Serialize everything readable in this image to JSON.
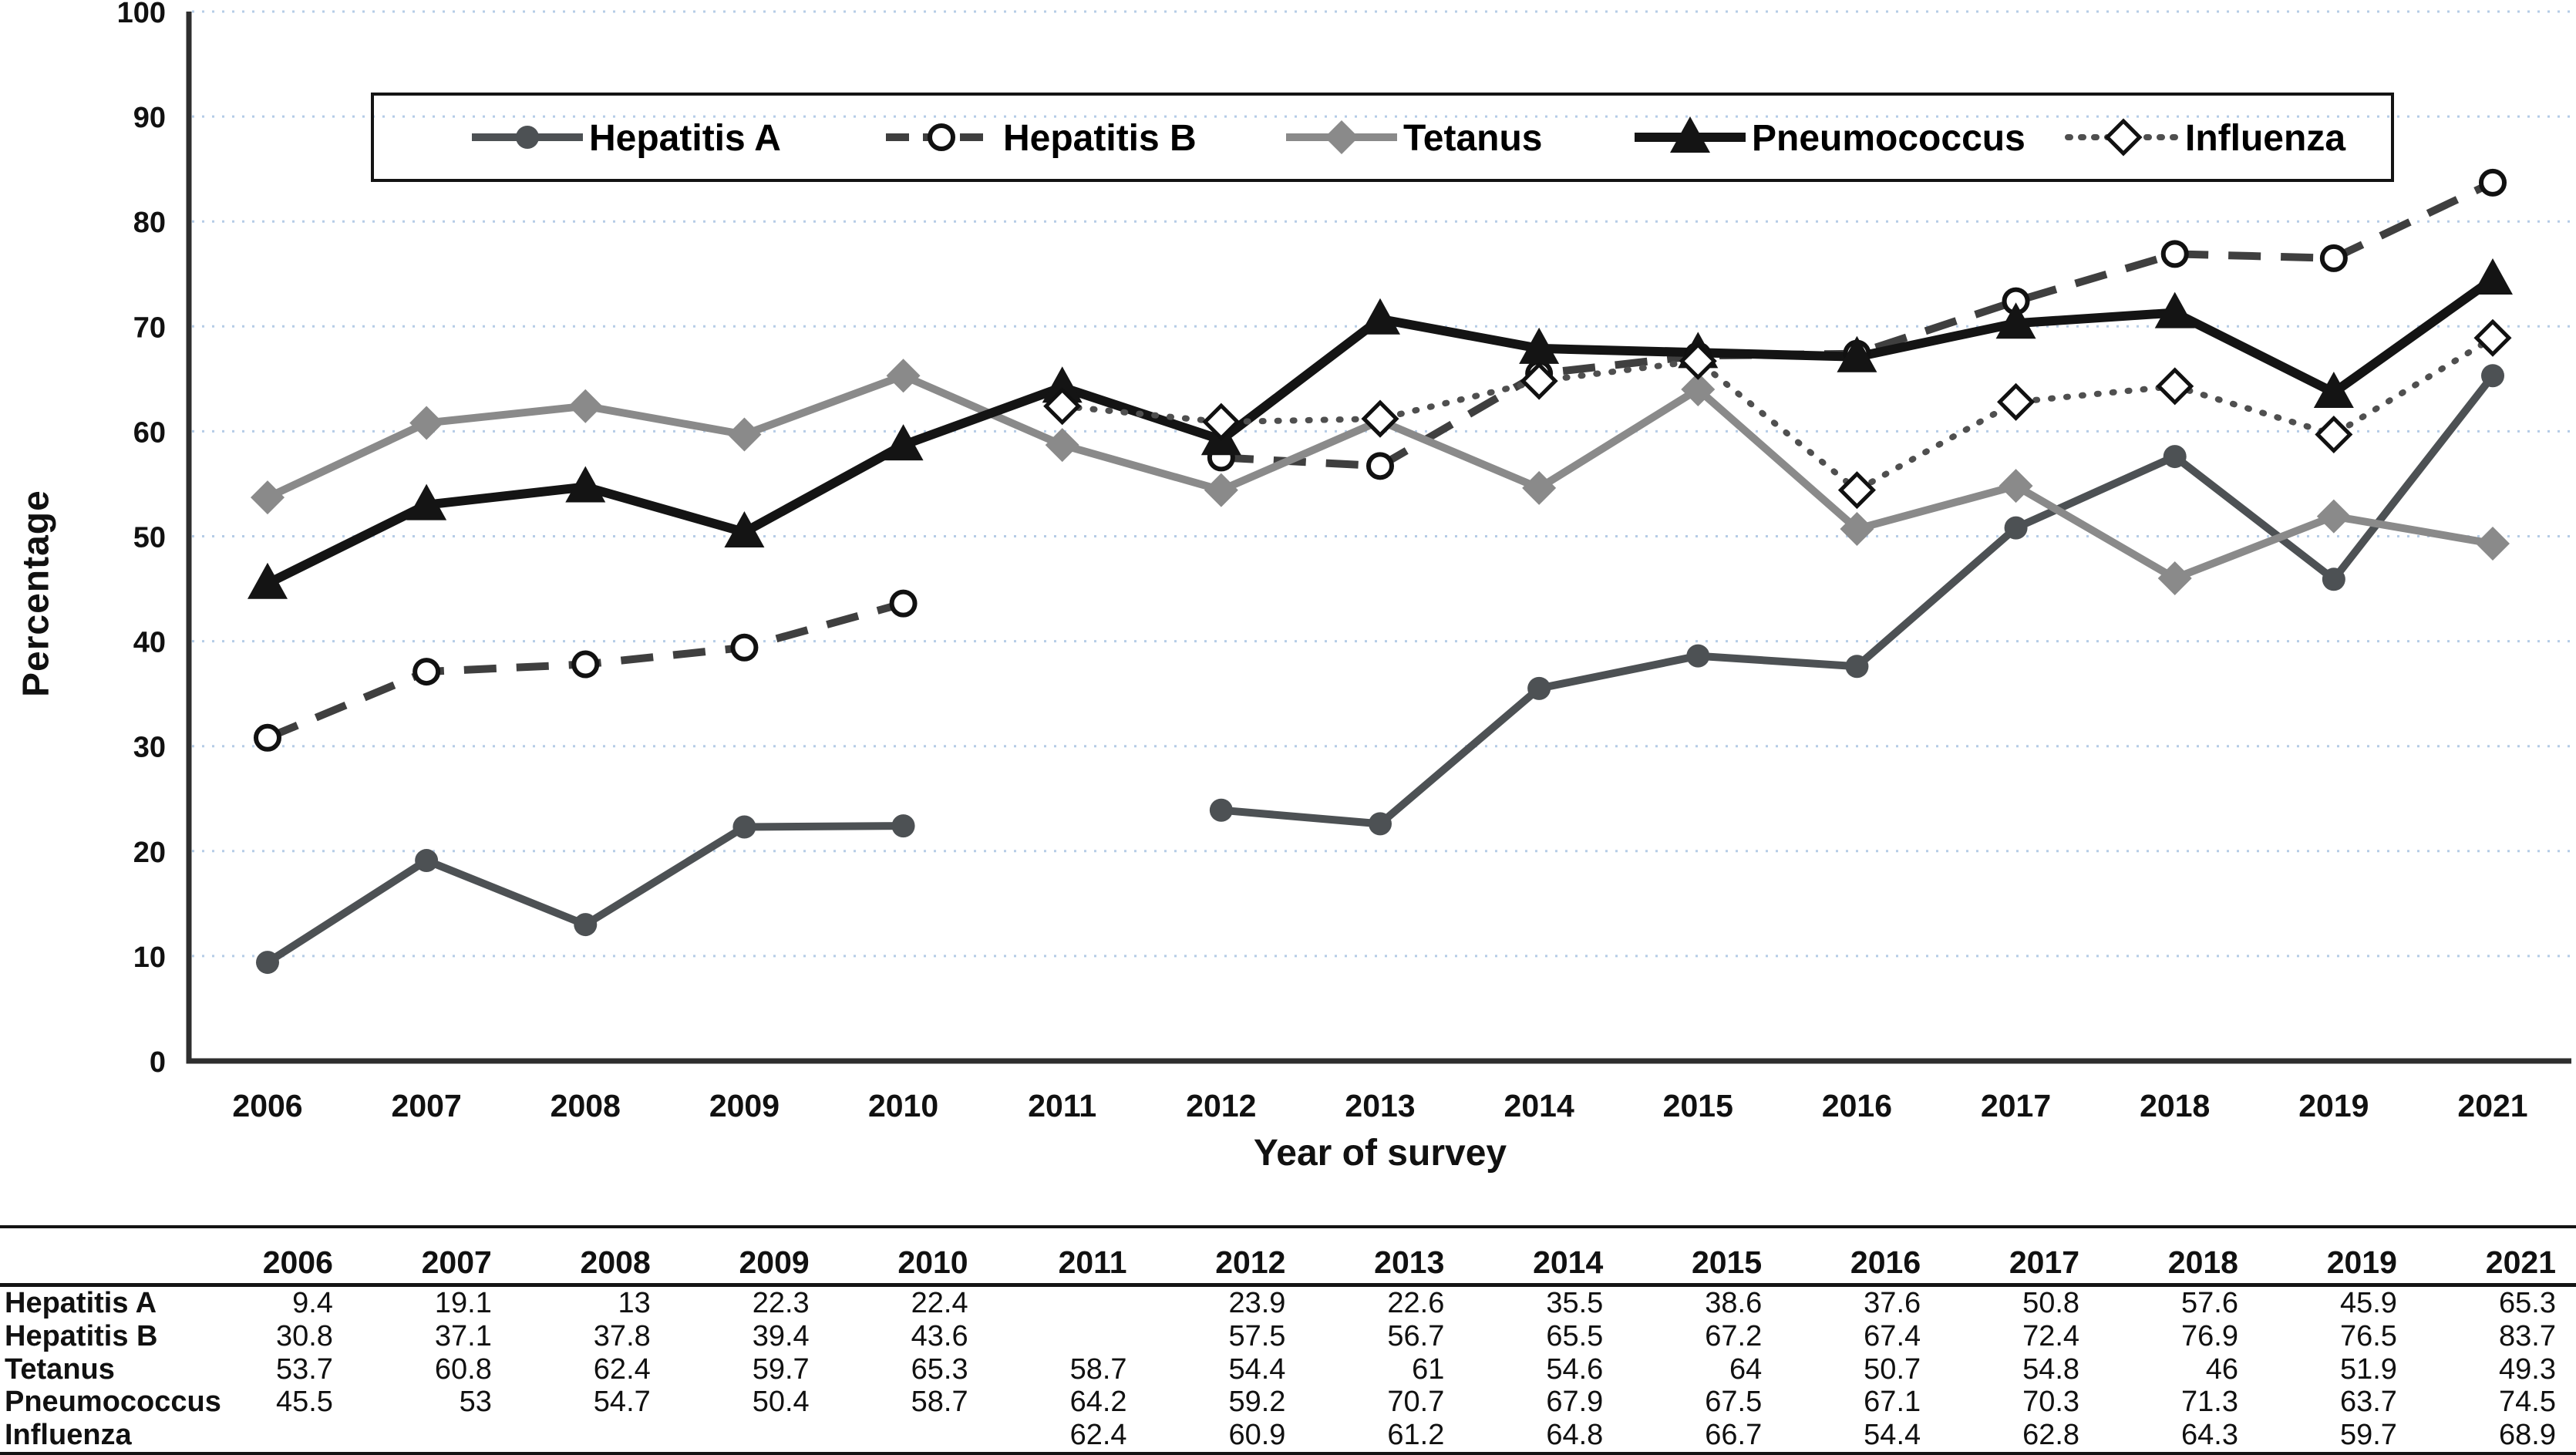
{
  "chart_data": {
    "type": "line",
    "title": "",
    "xlabel": "Year of survey",
    "ylabel": "Percentage",
    "ylim": [
      0,
      100
    ],
    "ytick_step": 10,
    "grid": {
      "show": true,
      "color": "#b5cce6",
      "style": "dotted"
    },
    "axis_color": "#2e2e2e",
    "legend_position": "top-center-inside-box",
    "categories": [
      "2006",
      "2007",
      "2008",
      "2009",
      "2010",
      "2011",
      "2012",
      "2013",
      "2014",
      "2015",
      "2016",
      "2017",
      "2018",
      "2019",
      "2021"
    ],
    "series": [
      {
        "name": "Hepatitis A",
        "color": "#4d5154",
        "line": "solid",
        "marker": "filled-circle",
        "values": [
          9.4,
          19.1,
          13,
          22.3,
          22.4,
          null,
          23.9,
          22.6,
          35.5,
          38.6,
          37.6,
          50.8,
          57.6,
          45.9,
          65.3
        ]
      },
      {
        "name": "Hepatitis B",
        "color": "#3f3f3f",
        "line": "dashed",
        "marker": "open-circle",
        "values": [
          30.8,
          37.1,
          37.8,
          39.4,
          43.6,
          null,
          57.5,
          56.7,
          65.5,
          67.2,
          67.4,
          72.4,
          76.9,
          76.5,
          83.7
        ]
      },
      {
        "name": "Tetanus",
        "color": "#8a8a8a",
        "line": "solid",
        "marker": "filled-diamond",
        "values": [
          53.7,
          60.8,
          62.4,
          59.7,
          65.3,
          58.7,
          54.4,
          61,
          54.6,
          64,
          50.7,
          54.8,
          46,
          51.9,
          49.3
        ]
      },
      {
        "name": "Pneumococcus",
        "color": "#141414",
        "line": "solid",
        "marker": "filled-triangle",
        "thickness": "thick",
        "values": [
          45.5,
          53,
          54.7,
          50.4,
          58.7,
          64.2,
          59.2,
          70.7,
          67.9,
          67.5,
          67.1,
          70.3,
          71.3,
          63.7,
          74.5
        ]
      },
      {
        "name": "Influenza",
        "color": "#4f4f4f",
        "line": "dotted",
        "marker": "open-diamond",
        "values": [
          null,
          null,
          null,
          null,
          null,
          62.4,
          60.9,
          61.2,
          64.8,
          66.7,
          54.4,
          62.8,
          64.3,
          59.7,
          68.9
        ]
      }
    ]
  },
  "table": {
    "corner_label": "",
    "rows": [
      {
        "label": "Hepatitis A",
        "values": [
          "9.4",
          "19.1",
          "13",
          "22.3",
          "22.4",
          "",
          "23.9",
          "22.6",
          "35.5",
          "38.6",
          "37.6",
          "50.8",
          "57.6",
          "45.9",
          "65.3"
        ]
      },
      {
        "label": "Hepatitis B",
        "values": [
          "30.8",
          "37.1",
          "37.8",
          "39.4",
          "43.6",
          "",
          "57.5",
          "56.7",
          "65.5",
          "67.2",
          "67.4",
          "72.4",
          "76.9",
          "76.5",
          "83.7"
        ]
      },
      {
        "label": "Tetanus",
        "values": [
          "53.7",
          "60.8",
          "62.4",
          "59.7",
          "65.3",
          "58.7",
          "54.4",
          "61",
          "54.6",
          "64",
          "50.7",
          "54.8",
          "46",
          "51.9",
          "49.3"
        ]
      },
      {
        "label": "Pneumococcus",
        "values": [
          "45.5",
          "53",
          "54.7",
          "50.4",
          "58.7",
          "64.2",
          "59.2",
          "70.7",
          "67.9",
          "67.5",
          "67.1",
          "70.3",
          "71.3",
          "63.7",
          "74.5"
        ]
      },
      {
        "label": "Influenza",
        "values": [
          "",
          "",
          "",
          "",
          "",
          "62.4",
          "60.9",
          "61.2",
          "64.8",
          "66.7",
          "54.4",
          "62.8",
          "64.3",
          "59.7",
          "68.9"
        ]
      }
    ]
  }
}
